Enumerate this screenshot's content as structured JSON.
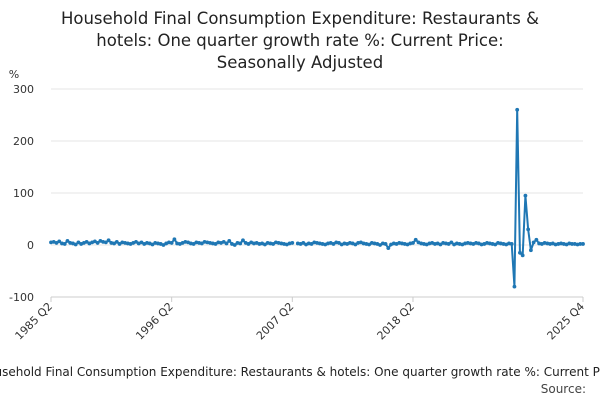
{
  "chart_data": {
    "type": "line",
    "title_lines": [
      "Household Final Consumption Expenditure: Restaurants &",
      "hotels: One quarter growth rate %: Current Price:",
      "Seasonally Adjusted"
    ],
    "ylabel": "%",
    "ylim": [
      -100,
      300
    ],
    "yticks": [
      "300",
      "200",
      "100",
      "0",
      "-100"
    ],
    "xtick_labels": [
      "1985 Q2",
      "1996 Q2",
      "2007 Q2",
      "2018 Q2",
      "2025 Q4"
    ],
    "legend_text": "Household Final Consumption Expenditure: Restaurants & hotels: One quarter growth rate %: Current Price",
    "source_label": "Source:",
    "grid": true,
    "line_color": "#1f77b4",
    "series": [
      {
        "x_start": "1985 Q2",
        "x_end": "2025 Q4",
        "values": [
          5,
          6,
          4,
          7,
          3,
          2,
          8,
          4,
          3,
          1,
          5,
          2,
          4,
          6,
          3,
          5,
          7,
          4,
          8,
          6,
          5,
          9,
          4,
          3,
          6,
          2,
          5,
          4,
          3,
          2,
          4,
          6,
          3,
          5,
          2,
          4,
          3,
          1,
          4,
          3,
          2,
          0,
          3,
          5,
          4,
          11,
          3,
          2,
          4,
          6,
          5,
          3,
          2,
          5,
          4,
          3,
          6,
          5,
          4,
          3,
          2,
          5,
          4,
          6,
          3,
          8,
          2,
          0,
          4,
          3,
          9,
          4,
          2,
          5,
          3,
          4,
          2,
          3,
          1,
          4,
          3,
          2,
          5,
          4,
          3,
          2,
          1,
          3,
          4,
          null,
          3,
          2,
          4,
          1,
          3,
          2,
          5,
          4,
          3,
          2,
          1,
          3,
          4,
          2,
          5,
          4,
          1,
          3,
          2,
          4,
          3,
          1,
          4,
          5,
          3,
          2,
          1,
          4,
          3,
          2,
          0,
          3,
          2,
          -6,
          1,
          3,
          2,
          4,
          3,
          2,
          1,
          3,
          4,
          10,
          5,
          3,
          2,
          1,
          3,
          4,
          2,
          3,
          1,
          4,
          3,
          2,
          5,
          1,
          3,
          2,
          1,
          3,
          4,
          3,
          2,
          4,
          3,
          1,
          2,
          4,
          3,
          2,
          1,
          4,
          3,
          2,
          1,
          3,
          2,
          -80,
          260,
          -15,
          -20,
          95,
          30,
          -10,
          5,
          10,
          3,
          2,
          4,
          3,
          2,
          3,
          1,
          2,
          3,
          2,
          1,
          3,
          2,
          2,
          1,
          2,
          2
        ]
      }
    ]
  }
}
